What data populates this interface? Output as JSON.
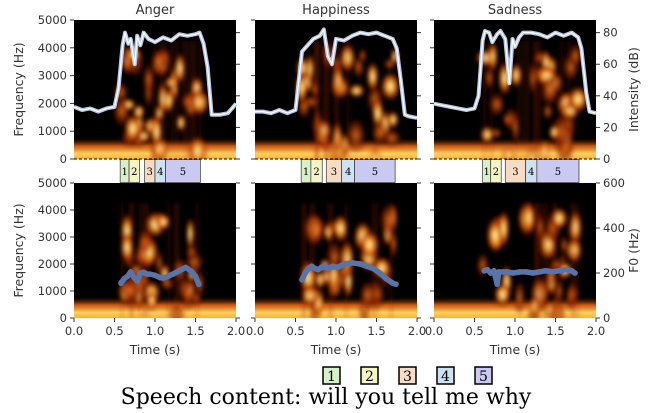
{
  "caption": "Speech content: will you tell me why",
  "colors": {
    "background": "#000000",
    "intensity_line": "#b8c8e6",
    "intensity_line_core": "#ffffff",
    "f0_line": "#5a73a8",
    "segment_colors": [
      "#d8f0c8",
      "#f4f4c4",
      "#f6dcc4",
      "#cfe2f3",
      "#c9c9f2"
    ]
  },
  "legend": [
    "1",
    "2",
    "3",
    "4",
    "5"
  ],
  "chart_data": {
    "type": "spectrogram",
    "panels": [
      {
        "title": "Anger",
        "segments": [
          {
            "label": "1",
            "start": 0.57,
            "end": 0.68
          },
          {
            "label": "2",
            "start": 0.68,
            "end": 0.81
          },
          {
            "label": "3",
            "start": 0.87,
            "end": 1.0
          },
          {
            "label": "4",
            "start": 1.0,
            "end": 1.13
          },
          {
            "label": "5",
            "start": 1.13,
            "end": 1.56
          }
        ],
        "intensity_db": {
          "t": [
            0.0,
            0.1,
            0.2,
            0.3,
            0.4,
            0.5,
            0.55,
            0.6,
            0.63,
            0.67,
            0.7,
            0.75,
            0.78,
            0.82,
            0.86,
            0.92,
            1.0,
            1.1,
            1.2,
            1.3,
            1.4,
            1.5,
            1.55,
            1.6,
            1.65,
            1.7,
            1.8,
            1.9,
            2.0
          ],
          "db": [
            33,
            31,
            32,
            30,
            32,
            33,
            45,
            72,
            80,
            73,
            76,
            60,
            78,
            72,
            80,
            76,
            74,
            77,
            75,
            79,
            78,
            79,
            80,
            73,
            58,
            28,
            28,
            29,
            35
          ]
        },
        "f0_hz": {
          "t": [
            0.58,
            0.62,
            0.66,
            0.7,
            0.74,
            0.78,
            0.82,
            0.86,
            0.9,
            0.94,
            1.0,
            1.06,
            1.1,
            1.16,
            1.22,
            1.3,
            1.38,
            1.44,
            1.5,
            1.54
          ],
          "hz": [
            155,
            175,
            185,
            205,
            180,
            165,
            200,
            203,
            195,
            195,
            190,
            180,
            178,
            185,
            195,
            210,
            225,
            210,
            185,
            150
          ]
        }
      },
      {
        "title": "Happiness",
        "segments": [
          {
            "label": "1",
            "start": 0.57,
            "end": 0.69
          },
          {
            "label": "2",
            "start": 0.69,
            "end": 0.83
          },
          {
            "label": "3",
            "start": 0.88,
            "end": 1.07
          },
          {
            "label": "4",
            "start": 1.07,
            "end": 1.23
          },
          {
            "label": "5",
            "start": 1.23,
            "end": 1.73
          }
        ],
        "intensity_db": {
          "t": [
            0.0,
            0.1,
            0.2,
            0.3,
            0.4,
            0.5,
            0.53,
            0.58,
            0.65,
            0.72,
            0.8,
            0.85,
            0.9,
            0.95,
            1.0,
            1.1,
            1.2,
            1.3,
            1.4,
            1.5,
            1.6,
            1.7,
            1.75,
            1.8,
            1.85,
            1.9,
            2.0
          ],
          "db": [
            30,
            30,
            29,
            31,
            29,
            31,
            45,
            68,
            72,
            76,
            78,
            82,
            65,
            60,
            76,
            75,
            78,
            80,
            79,
            80,
            78,
            76,
            70,
            50,
            28,
            27,
            26
          ]
        },
        "f0_hz": {
          "t": [
            0.58,
            0.62,
            0.66,
            0.7,
            0.74,
            0.78,
            0.82,
            0.86,
            0.9,
            0.96,
            1.02,
            1.1,
            1.2,
            1.3,
            1.38,
            1.46,
            1.54,
            1.62,
            1.7,
            1.74
          ],
          "hz": [
            170,
            200,
            220,
            230,
            220,
            215,
            225,
            230,
            220,
            230,
            225,
            240,
            245,
            240,
            230,
            220,
            200,
            175,
            155,
            150
          ]
        }
      },
      {
        "title": "Sadness",
        "segments": [
          {
            "label": "1",
            "start": 0.6,
            "end": 0.7
          },
          {
            "label": "2",
            "start": 0.7,
            "end": 0.83
          },
          {
            "label": "3",
            "start": 0.88,
            "end": 1.13
          },
          {
            "label": "4",
            "start": 1.13,
            "end": 1.27
          },
          {
            "label": "5",
            "start": 1.27,
            "end": 1.79
          }
        ],
        "intensity_db": {
          "t": [
            0.0,
            0.1,
            0.2,
            0.3,
            0.4,
            0.5,
            0.55,
            0.6,
            0.63,
            0.68,
            0.72,
            0.78,
            0.82,
            0.88,
            0.93,
            0.97,
            1.0,
            1.05,
            1.1,
            1.2,
            1.3,
            1.4,
            1.5,
            1.6,
            1.7,
            1.78,
            1.82,
            1.88,
            1.92,
            2.0
          ],
          "db": [
            35,
            34,
            33,
            32,
            31,
            32,
            40,
            75,
            81,
            80,
            74,
            79,
            81,
            76,
            48,
            76,
            71,
            77,
            80,
            80,
            79,
            77,
            80,
            78,
            80,
            77,
            70,
            42,
            30,
            29
          ]
        },
        "f0_hz": {
          "t": [
            0.62,
            0.66,
            0.7,
            0.74,
            0.78,
            0.8,
            0.9,
            0.98,
            1.06,
            1.14,
            1.22,
            1.3,
            1.38,
            1.46,
            1.54,
            1.62,
            1.7,
            1.74
          ],
          "hz": [
            210,
            215,
            200,
            210,
            150,
            205,
            205,
            200,
            205,
            205,
            200,
            205,
            210,
            205,
            210,
            215,
            210,
            200
          ]
        }
      }
    ],
    "x": {
      "label": "Time (s)",
      "lim": [
        0.0,
        2.0
      ],
      "ticks": [
        "0.0",
        "0.5",
        "1.0",
        "1.5",
        "2.0"
      ]
    },
    "y_freq": {
      "label": "Frequency (Hz)",
      "lim": [
        0,
        5000
      ],
      "ticks": [
        "0",
        "1000",
        "2000",
        "3000",
        "4000",
        "5000"
      ]
    },
    "y_intensity": {
      "label": "Intensity (dB)",
      "lim": [
        0,
        88
      ],
      "ticks": [
        "0",
        "20",
        "40",
        "60",
        "80"
      ]
    },
    "y_f0": {
      "label": "F0 (Hz)",
      "lim": [
        0,
        600
      ],
      "ticks": [
        "0",
        "200",
        "400",
        "600"
      ]
    }
  }
}
